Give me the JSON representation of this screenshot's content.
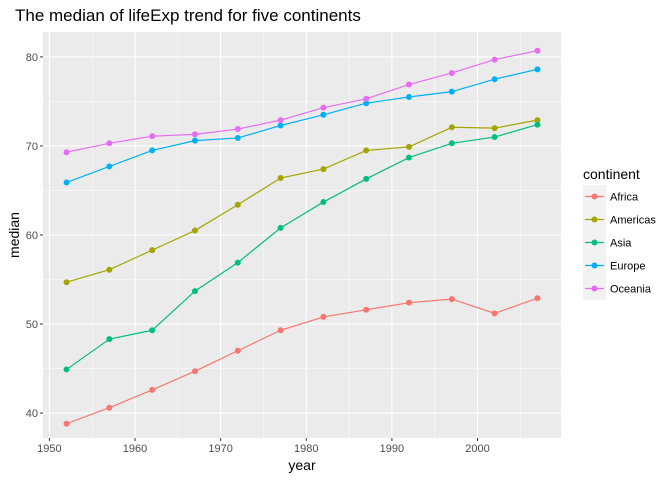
{
  "chart_data": {
    "type": "line",
    "title": "The median of lifeExp trend for five continents",
    "xlabel": "year",
    "ylabel": "median",
    "xlim": [
      1949.25,
      2009.75
    ],
    "ylim": [
      37.2,
      82.8
    ],
    "xticks": [
      1950,
      1960,
      1970,
      1980,
      1990,
      2000
    ],
    "yticks": [
      40,
      50,
      60,
      70,
      80
    ],
    "grid": true,
    "legend": {
      "title": "continent",
      "position": "right"
    },
    "x": [
      1952,
      1957,
      1962,
      1967,
      1972,
      1977,
      1982,
      1987,
      1992,
      1997,
      2002,
      2007
    ],
    "series": [
      {
        "name": "Africa",
        "color": "#F8766D",
        "values": [
          38.8,
          40.6,
          42.6,
          44.7,
          47.0,
          49.3,
          50.8,
          51.6,
          52.4,
          52.8,
          51.2,
          52.9
        ]
      },
      {
        "name": "Americas",
        "color": "#A3A500",
        "values": [
          54.7,
          56.1,
          58.3,
          60.5,
          63.4,
          66.4,
          67.4,
          69.5,
          69.9,
          72.1,
          72.0,
          72.9
        ]
      },
      {
        "name": "Asia",
        "color": "#00BF7D",
        "values": [
          44.9,
          48.3,
          49.3,
          53.7,
          56.9,
          60.8,
          63.7,
          66.3,
          68.7,
          70.3,
          71.0,
          72.4
        ]
      },
      {
        "name": "Europe",
        "color": "#00B0F6",
        "values": [
          65.9,
          67.7,
          69.5,
          70.6,
          70.9,
          72.3,
          73.5,
          74.8,
          75.5,
          76.1,
          77.5,
          78.6
        ]
      },
      {
        "name": "Oceania",
        "color": "#E76BF3",
        "values": [
          69.3,
          70.3,
          71.1,
          71.3,
          71.9,
          72.9,
          74.3,
          75.3,
          76.9,
          78.2,
          79.7,
          80.7
        ]
      }
    ]
  }
}
